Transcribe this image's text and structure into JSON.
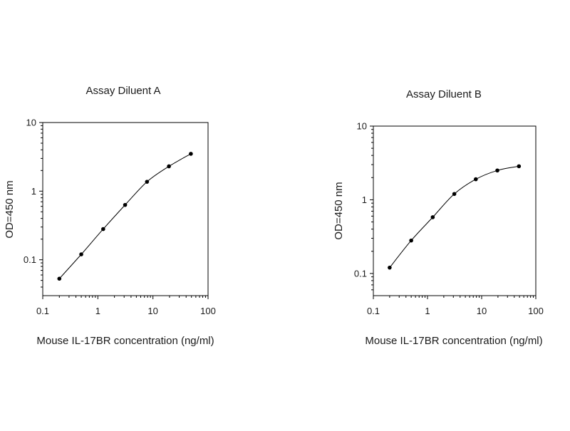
{
  "chart_data": [
    {
      "type": "line",
      "title": "Assay Diluent A",
      "xlabel": "Mouse IL-17BR concentration (ng/ml)",
      "ylabel": "OD=450 nm",
      "xscale": "log",
      "yscale": "log",
      "xlim": [
        0.1,
        100
      ],
      "ylim": [
        0.03,
        10
      ],
      "x_ticks": [
        0.1,
        1,
        10,
        100
      ],
      "x_tick_labels": [
        "0.1",
        "1",
        "10",
        "100"
      ],
      "y_ticks": [
        0.1,
        1,
        10
      ],
      "y_tick_labels": [
        "0.1",
        "1",
        "10"
      ],
      "grid": false,
      "series": [
        {
          "x": [
            0.2,
            0.5,
            1.25,
            3.125,
            7.8,
            19.5,
            48.8
          ],
          "y": [
            0.053,
            0.12,
            0.28,
            0.63,
            1.37,
            2.3,
            3.5
          ],
          "color": "#000000"
        }
      ]
    },
    {
      "type": "line",
      "title": "Assay Diluent B",
      "xlabel": "Mouse IL-17BR concentration (ng/ml)",
      "ylabel": "OD=450 nm",
      "xscale": "log",
      "yscale": "log",
      "xlim": [
        0.1,
        100
      ],
      "ylim": [
        0.05,
        10
      ],
      "x_ticks": [
        0.1,
        1,
        10,
        100
      ],
      "x_tick_labels": [
        "0.1",
        "1",
        "10",
        "100"
      ],
      "y_ticks": [
        0.1,
        1,
        10
      ],
      "y_tick_labels": [
        "0.1",
        "1",
        "10"
      ],
      "grid": false,
      "series": [
        {
          "x": [
            0.2,
            0.5,
            1.25,
            3.125,
            7.8,
            19.5,
            48.8
          ],
          "y": [
            0.12,
            0.28,
            0.58,
            1.2,
            1.9,
            2.5,
            2.85
          ],
          "color": "#000000"
        }
      ]
    }
  ]
}
